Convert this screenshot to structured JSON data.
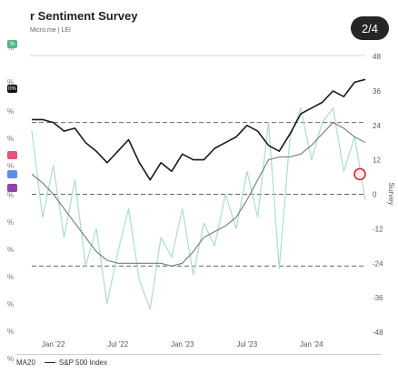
{
  "header": {
    "title": "r Sentiment Survey",
    "source": "Micro.me | LEI",
    "page_indicator": "2/4"
  },
  "left_edge": {
    "labels": [
      "%",
      "%",
      "%",
      "%",
      "%",
      "%",
      "%",
      "%",
      "%",
      "%",
      "%",
      "%"
    ],
    "tags": [
      {
        "text": "%",
        "color": "#52b788"
      },
      {
        "text": "0%",
        "color": "#111111"
      },
      {
        "text": "",
        "color": "#e0567a"
      },
      {
        "text": "",
        "color": "#5b8def"
      },
      {
        "text": "",
        "color": "#8e44ad"
      }
    ]
  },
  "legend": {
    "items": [
      "MA20",
      "S&P 500 Index"
    ]
  },
  "chart_data": {
    "type": "line",
    "ylabel": "Survey",
    "yticks": [
      48,
      36,
      24,
      12,
      0,
      -12,
      -24,
      -36,
      -48
    ],
    "ylim": [
      -48,
      48
    ],
    "xtick_labels": [
      "Jan '22",
      "Jul '22",
      "Jan '23",
      "Jul '23",
      "Jan '24"
    ],
    "reference_lines": [
      25,
      0,
      -25
    ],
    "colors": {
      "sp500": "#1a1a1a",
      "ma20": "#6f7b7b",
      "survey": "#a9dcd8",
      "marker": "#c0282d",
      "guide": "#666666"
    },
    "series": [
      {
        "name": "S&P 500 Index",
        "x": [
          "2021-11",
          "2021-12",
          "2022-01",
          "2022-02",
          "2022-03",
          "2022-04",
          "2022-05",
          "2022-06",
          "2022-07",
          "2022-08",
          "2022-09",
          "2022-10",
          "2022-11",
          "2022-12",
          "2023-01",
          "2023-02",
          "2023-03",
          "2023-04",
          "2023-05",
          "2023-06",
          "2023-07",
          "2023-08",
          "2023-09",
          "2023-10",
          "2023-11",
          "2023-12",
          "2024-01",
          "2024-02",
          "2024-03",
          "2024-04",
          "2024-05",
          "2024-06"
        ],
        "values": [
          26,
          26,
          25,
          22,
          23,
          18,
          15,
          11,
          15,
          19,
          11,
          5,
          11,
          8,
          14,
          12,
          12,
          16,
          18,
          20,
          24,
          22,
          17,
          15,
          21,
          28,
          30,
          32,
          36,
          34,
          39,
          40
        ]
      },
      {
        "name": "MA20",
        "x": [
          "2021-11",
          "2021-12",
          "2022-01",
          "2022-02",
          "2022-03",
          "2022-04",
          "2022-05",
          "2022-06",
          "2022-07",
          "2022-08",
          "2022-09",
          "2022-10",
          "2022-11",
          "2022-12",
          "2023-01",
          "2023-02",
          "2023-03",
          "2023-04",
          "2023-05",
          "2023-06",
          "2023-07",
          "2023-08",
          "2023-09",
          "2023-10",
          "2023-11",
          "2023-12",
          "2024-01",
          "2024-02",
          "2024-03",
          "2024-04",
          "2024-05",
          "2024-06"
        ],
        "values": [
          7,
          4,
          0,
          -5,
          -10,
          -15,
          -20,
          -23,
          -24,
          -24,
          -24,
          -24,
          -24,
          -25,
          -24,
          -20,
          -15,
          -13,
          -11,
          -8,
          -2,
          5,
          12,
          13,
          13,
          14,
          17,
          21,
          25,
          23,
          20,
          18
        ]
      },
      {
        "name": "Survey",
        "x": [
          "2021-11",
          "2021-12",
          "2022-01",
          "2022-02",
          "2022-03",
          "2022-04",
          "2022-05",
          "2022-06",
          "2022-07",
          "2022-08",
          "2022-09",
          "2022-10",
          "2022-11",
          "2022-12",
          "2023-01",
          "2023-02",
          "2023-03",
          "2023-04",
          "2023-05",
          "2023-06",
          "2023-07",
          "2023-08",
          "2023-09",
          "2023-10",
          "2023-11",
          "2023-12",
          "2024-01",
          "2024-02",
          "2024-03",
          "2024-04",
          "2024-05",
          "2024-06"
        ],
        "values": [
          22,
          -8,
          10,
          -15,
          5,
          -25,
          -12,
          -38,
          -20,
          -5,
          -30,
          -40,
          -15,
          -22,
          -5,
          -28,
          -10,
          -18,
          0,
          -12,
          8,
          -8,
          25,
          -26,
          20,
          30,
          12,
          25,
          30,
          8,
          20,
          -2
        ]
      }
    ],
    "marker": {
      "x": "2024-06",
      "y": 7
    }
  }
}
